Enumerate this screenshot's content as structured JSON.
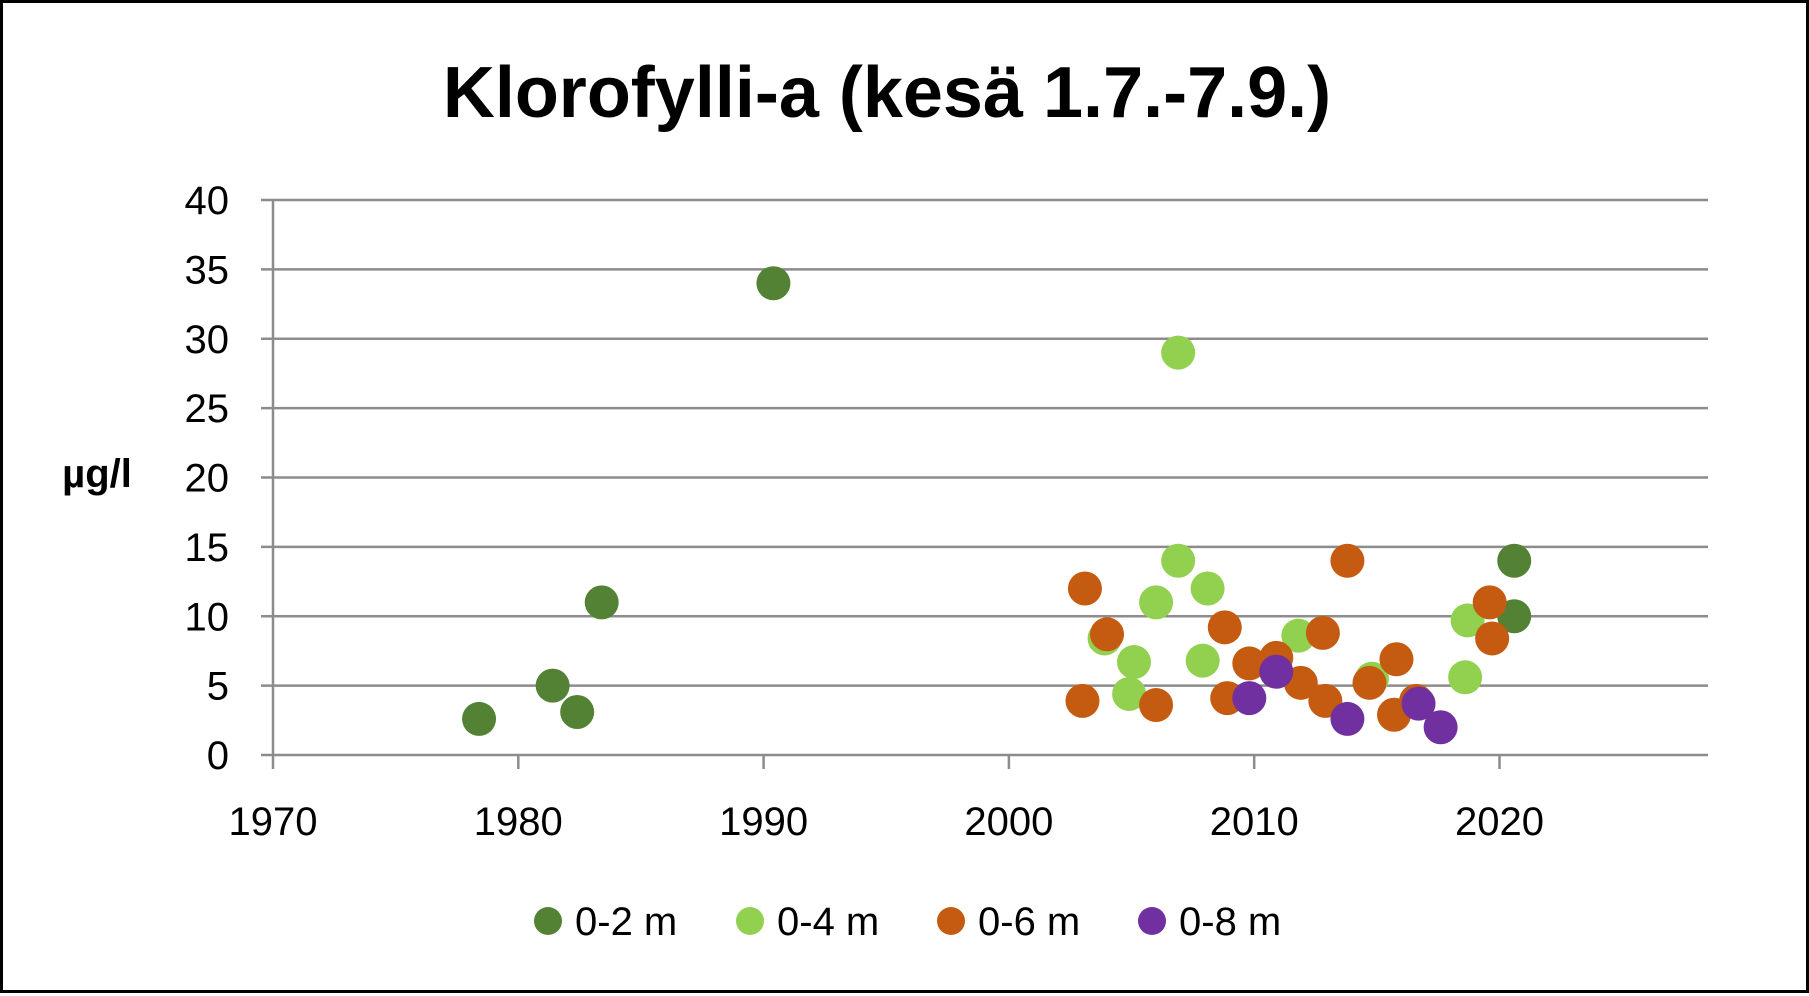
{
  "chart_data": {
    "type": "scatter",
    "title": "Klorofylli-a (kesä 1.7.-7.9.)",
    "xlabel": "",
    "ylabel": "µg/l",
    "xlim": [
      1970,
      2028.5
    ],
    "ylim": [
      0,
      40
    ],
    "xticks": [
      1970,
      1980,
      1990,
      2000,
      2010,
      2020
    ],
    "xtick_labels": [
      "1970",
      "1980",
      "1990",
      "2000",
      "2010",
      "2020"
    ],
    "yticks": [
      0,
      5,
      10,
      15,
      20,
      25,
      30,
      35,
      40
    ],
    "ytick_labels": [
      "0",
      "5",
      "10",
      "15",
      "20",
      "25",
      "30",
      "35",
      "40"
    ],
    "grid": "horizontal",
    "legend_position": "bottom",
    "series": [
      {
        "name": "0-2 m",
        "color": "#548235",
        "points": [
          [
            1978.4,
            2.6
          ],
          [
            1981.4,
            5.0
          ],
          [
            1982.4,
            3.1
          ],
          [
            1983.4,
            11.0
          ],
          [
            1990.4,
            34.0
          ],
          [
            2020.6,
            14.0
          ],
          [
            2020.6,
            10.0
          ]
        ]
      },
      {
        "name": "0-4 m",
        "color": "#92d050",
        "points": [
          [
            2003.9,
            8.4
          ],
          [
            2004.9,
            4.4
          ],
          [
            2005.1,
            6.7
          ],
          [
            2006.0,
            11.0
          ],
          [
            2006.9,
            14.0
          ],
          [
            2006.9,
            29.0
          ],
          [
            2007.9,
            6.8
          ],
          [
            2008.1,
            12.0
          ],
          [
            2011.8,
            8.6
          ],
          [
            2014.8,
            5.5
          ],
          [
            2018.6,
            5.6
          ],
          [
            2018.7,
            9.7
          ]
        ]
      },
      {
        "name": "0-6 m",
        "color": "#c55a11",
        "points": [
          [
            2003.0,
            3.9
          ],
          [
            2003.1,
            12.0
          ],
          [
            2004.0,
            8.7
          ],
          [
            2006.0,
            3.6
          ],
          [
            2008.8,
            9.2
          ],
          [
            2008.9,
            4.1
          ],
          [
            2009.8,
            6.6
          ],
          [
            2010.9,
            7.0
          ],
          [
            2011.9,
            5.2
          ],
          [
            2012.8,
            8.8
          ],
          [
            2012.9,
            3.9
          ],
          [
            2013.8,
            14.0
          ],
          [
            2014.7,
            5.2
          ],
          [
            2015.7,
            2.9
          ],
          [
            2015.8,
            6.9
          ],
          [
            2016.6,
            3.9
          ],
          [
            2019.6,
            11.0
          ],
          [
            2019.7,
            8.4
          ]
        ]
      },
      {
        "name": "0-8 m",
        "color": "#7030a0",
        "points": [
          [
            2009.8,
            4.1
          ],
          [
            2010.9,
            6.0
          ],
          [
            2013.8,
            2.6
          ],
          [
            2016.7,
            3.7
          ],
          [
            2017.6,
            2.0
          ]
        ]
      }
    ]
  }
}
